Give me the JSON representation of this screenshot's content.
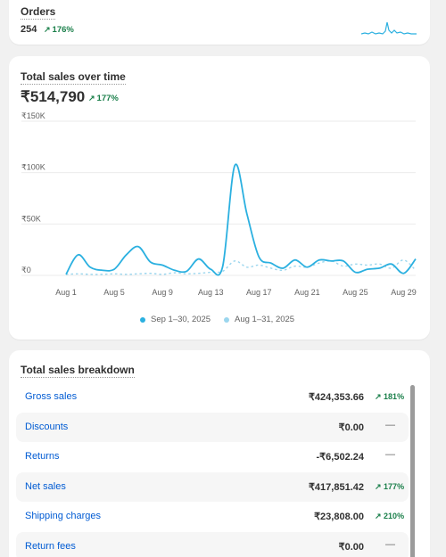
{
  "orders": {
    "title": "Orders",
    "value": "254",
    "change": "176%"
  },
  "sales": {
    "title": "Total sales over time",
    "total": "₹514,790",
    "change": "177%",
    "legend": [
      {
        "label": "Sep 1–30, 2025",
        "color": "#2bb0e0"
      },
      {
        "label": "Aug 1–31, 2025",
        "color": "#9bd6ee"
      }
    ]
  },
  "chart_data": {
    "type": "line",
    "x": [
      "Aug 1",
      "Aug 2",
      "Aug 3",
      "Aug 4",
      "Aug 5",
      "Aug 6",
      "Aug 7",
      "Aug 8",
      "Aug 9",
      "Aug 10",
      "Aug 11",
      "Aug 12",
      "Aug 13",
      "Aug 14",
      "Aug 15",
      "Aug 16",
      "Aug 17",
      "Aug 18",
      "Aug 19",
      "Aug 20",
      "Aug 21",
      "Aug 22",
      "Aug 23",
      "Aug 24",
      "Aug 25",
      "Aug 26",
      "Aug 27",
      "Aug 28",
      "Aug 29",
      "Aug 30"
    ],
    "x_tick_labels": [
      "Aug 1",
      "Aug 5",
      "Aug 9",
      "Aug 13",
      "Aug 17",
      "Aug 21",
      "Aug 25",
      "Aug 29"
    ],
    "y_tick_labels": [
      "₹0",
      "₹50K",
      "₹100K",
      "₹150K"
    ],
    "ylim": [
      0,
      150000
    ],
    "series": [
      {
        "name": "Sep 1–30, 2025",
        "color": "#2bb0e0",
        "dashed": false,
        "values": [
          1000,
          20000,
          8000,
          5000,
          6000,
          20000,
          28000,
          13000,
          10000,
          5000,
          4000,
          16000,
          6000,
          9000,
          107000,
          60000,
          18000,
          12000,
          7000,
          15000,
          8000,
          15000,
          14000,
          14000,
          3000,
          6000,
          7000,
          11000,
          2000,
          16000
        ]
      },
      {
        "name": "Aug 1–31, 2025",
        "color": "#9bd6ee",
        "dashed": true,
        "values": [
          1000,
          1500,
          1000,
          1000,
          1500,
          1000,
          1500,
          2000,
          1000,
          2500,
          1500,
          2000,
          3000,
          4000,
          14000,
          8000,
          10000,
          7000,
          5000,
          9000,
          8000,
          12000,
          14000,
          9000,
          11000,
          10000,
          11000,
          7000,
          15000,
          5000
        ]
      }
    ],
    "grid": true,
    "legend_placement": "bottom"
  },
  "breakdown": {
    "title": "Total sales breakdown",
    "rows": [
      {
        "label": "Gross sales",
        "value": "₹424,353.66",
        "change": "181%"
      },
      {
        "label": "Discounts",
        "value": "₹0.00",
        "change": "—"
      },
      {
        "label": "Returns",
        "value": "-₹6,502.24",
        "change": "—"
      },
      {
        "label": "Net sales",
        "value": "₹417,851.42",
        "change": "177%"
      },
      {
        "label": "Shipping charges",
        "value": "₹23,808.00",
        "change": "210%"
      },
      {
        "label": "Return fees",
        "value": "₹0.00",
        "change": "—"
      }
    ]
  },
  "icons": {
    "up_arrow": "arrow-up-right-icon",
    "dash": "dash-icon"
  }
}
